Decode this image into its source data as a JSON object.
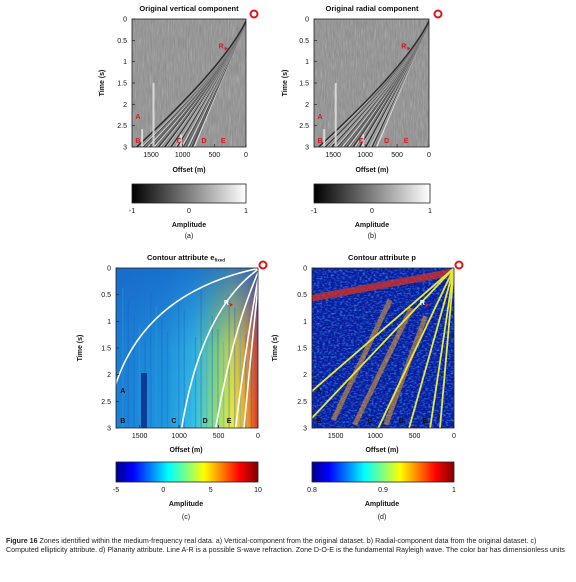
{
  "panels": [
    {
      "id": "a",
      "title": "Original vertical component",
      "kind": "seismic",
      "ylabel": "Time (s)",
      "xlabel": "Offset (m)",
      "yticks": [
        "0",
        "0.5",
        "1",
        "1.5",
        "2",
        "2.5",
        "3"
      ],
      "xticks": [
        "1500",
        "1000",
        "500",
        "0"
      ],
      "zone_labels": [
        "A",
        "B",
        "C",
        "D",
        "E",
        "R"
      ],
      "colorbar_ticks": [
        "-1",
        "0",
        "1"
      ],
      "colorbar_label": "Amplitude",
      "panel_label": "(a)"
    },
    {
      "id": "b",
      "title": "Original radial component",
      "kind": "seismic",
      "ylabel": "Time (s)",
      "xlabel": "Offset (m)",
      "yticks": [
        "0",
        "0.5",
        "1",
        "1.5",
        "2",
        "2.5",
        "3"
      ],
      "xticks": [
        "1500",
        "1000",
        "500",
        "0"
      ],
      "zone_labels": [
        "A",
        "B",
        "C",
        "D",
        "E",
        "R"
      ],
      "colorbar_ticks": [
        "-1",
        "0",
        "1"
      ],
      "colorbar_label": "Amplitude",
      "panel_label": "(b)"
    },
    {
      "id": "c",
      "title": "Contour attribute e",
      "title_subscript": "fixed",
      "kind": "jet",
      "ylabel": "Time (s)",
      "xlabel": "Offset (m)",
      "yticks": [
        "0",
        "0.5",
        "1",
        "1.5",
        "2",
        "2.5",
        "3"
      ],
      "xticks": [
        "1500",
        "1000",
        "500",
        "0"
      ],
      "zone_labels": [
        "A",
        "B",
        "C",
        "D",
        "E",
        "R"
      ],
      "colorbar_ticks": [
        "-5",
        "0",
        "5",
        "10"
      ],
      "colorbar_label": "Amplitude",
      "panel_label": "(c)"
    },
    {
      "id": "d",
      "title": "Contour attribute p",
      "kind": "jet",
      "ylabel": "Time (s)",
      "xlabel": "Offset (m)",
      "yticks": [
        "0",
        "0.5",
        "1",
        "1.5",
        "2",
        "2.5",
        "3"
      ],
      "xticks": [
        "1500",
        "1000",
        "500",
        "0"
      ],
      "zone_labels": [
        "A",
        "B",
        "C",
        "D",
        "E",
        "R"
      ],
      "colorbar_ticks": [
        "0.8",
        "0.9",
        "1"
      ],
      "colorbar_label": "Amplitude",
      "panel_label": "(d)"
    }
  ],
  "caption": {
    "label": "Figure 16",
    "text": "Zones identified within the medium-frequency real data. a) Vertical-component from the original dataset. b) Radial-component data from the original dataset. c) Computed ellipticity attribute. d) Planarity attribute. Line A-R is a possible S-wave refraction. Zone D-O-E is the fundamental Rayleigh wave. The color bar has dimensionless units"
  },
  "colors": {
    "source_marker": "#e0141b",
    "zone_label_seismic": "#e0141b",
    "line_ellipticity": "#ffffff",
    "line_planarity": "#e8e83a"
  }
}
